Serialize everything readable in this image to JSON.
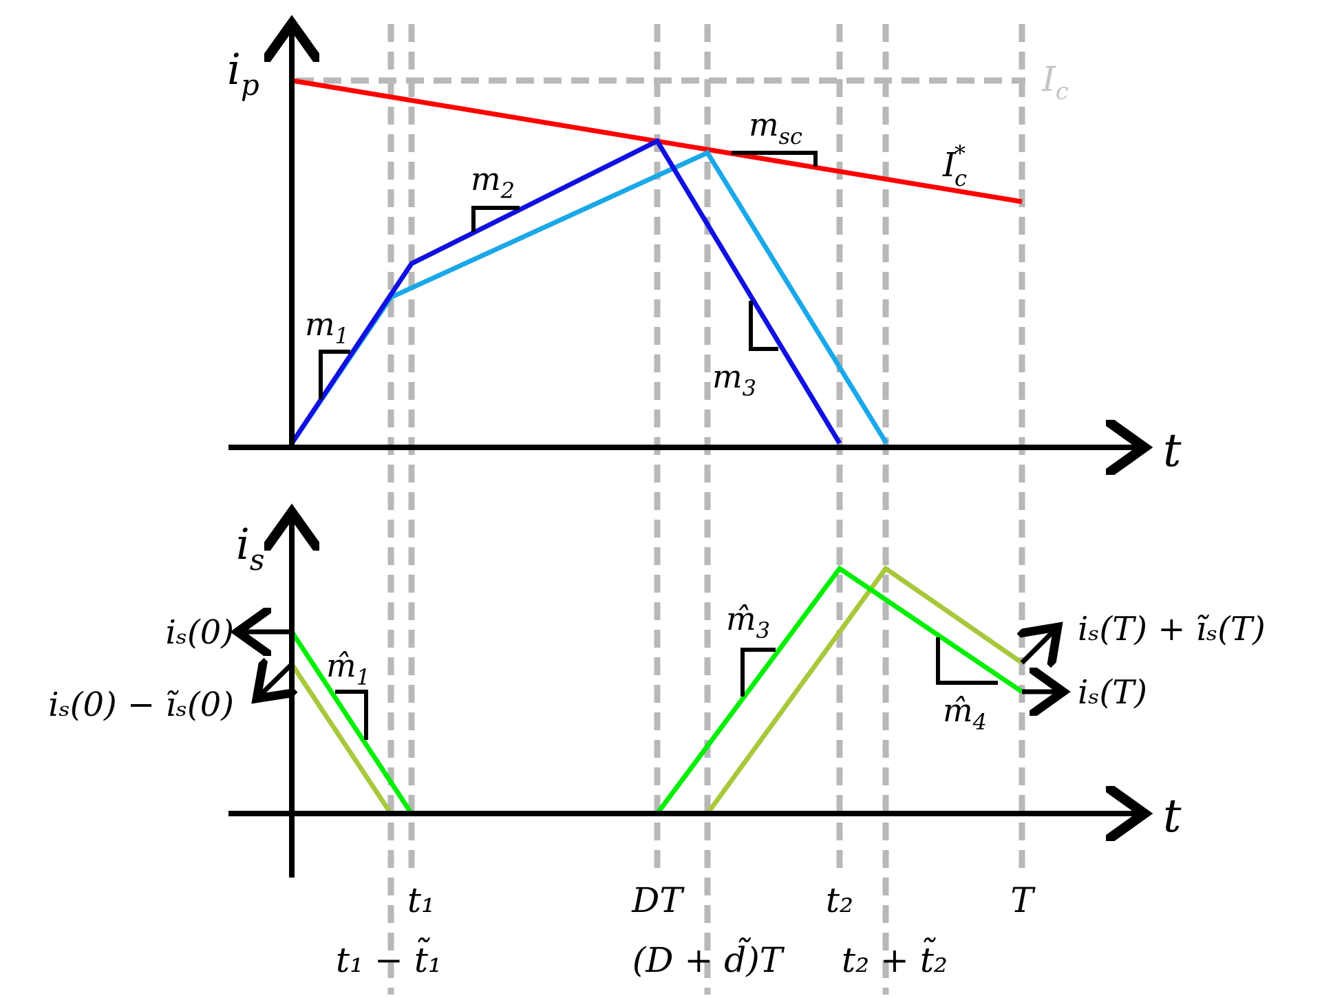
{
  "colors": {
    "axis": "#000000",
    "guide": "#b8b8b8",
    "ic_label": "#c4c4c4",
    "reference": "#ff0000",
    "ip_nominal": "#1010e0",
    "ip_perturbed": "#1aa8e8",
    "is_nominal": "#00ee00",
    "is_perturbed": "#a8c83c"
  },
  "top_plot": {
    "y_label": "i",
    "y_label_sub": "p",
    "x_label": "t",
    "ic_label": "I",
    "ic_label_sub": "c",
    "ref_label": "I",
    "ref_label_sub": "c",
    "ref_label_sup": "*",
    "slopes": [
      {
        "name": "m",
        "sub": "1"
      },
      {
        "name": "m",
        "sub": "2"
      },
      {
        "name": "m",
        "sub": "3"
      },
      {
        "name": "m",
        "sub": "sc"
      }
    ]
  },
  "bottom_plot": {
    "y_label": "i",
    "y_label_sub": "s",
    "x_label": "t",
    "slopes": [
      {
        "name": "m̂",
        "sub": "1"
      },
      {
        "name": "m̂",
        "sub": "3"
      },
      {
        "name": "m̂",
        "sub": "4"
      }
    ],
    "annotations": {
      "is0": "iₛ(0)",
      "is0_minus": "iₛ(0) − ĩₛ(0)",
      "isT_plus": "iₛ(T) + ĩₛ(T)",
      "isT": "iₛ(T)"
    }
  },
  "time_labels": {
    "t1": "t₁",
    "t1_minus": "t₁ − t̃₁",
    "DT": "DT",
    "D_plus_d": "(D + d̃)T",
    "t2": "t₂",
    "t2_plus": "t₂ + t̃₂",
    "T": "T"
  }
}
